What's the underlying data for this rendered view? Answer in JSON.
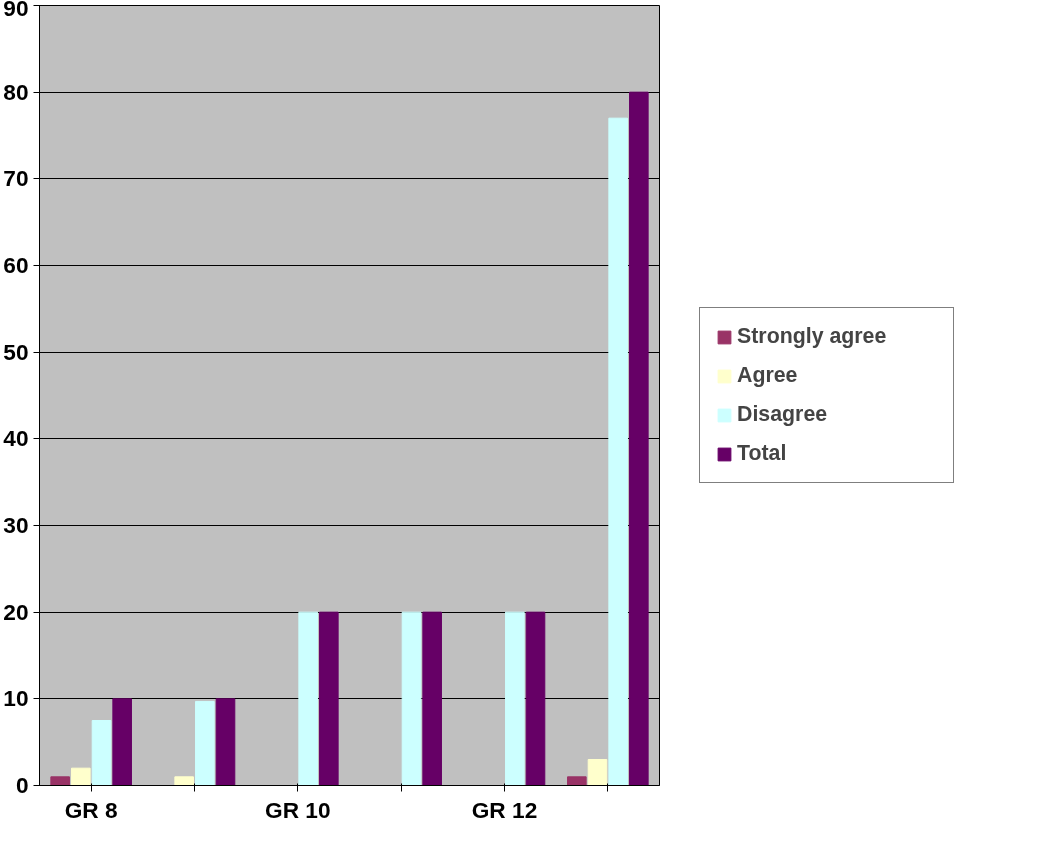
{
  "chart_data": {
    "type": "bar",
    "categories": [
      "GR 8",
      null,
      "GR 10",
      null,
      "GR 12",
      null
    ],
    "series": [
      {
        "name": "Strongly agree",
        "color": "#993366",
        "values": [
          1,
          0,
          0,
          0,
          0,
          1
        ]
      },
      {
        "name": "Agree",
        "color": "#ffffcc",
        "values": [
          2,
          1,
          0,
          0,
          0,
          3
        ]
      },
      {
        "name": "Disagree",
        "color": "#ccffff",
        "values": [
          7.5,
          9.7,
          20,
          20,
          20,
          77
        ]
      },
      {
        "name": "Total",
        "color": "#660066",
        "values": [
          10,
          10,
          20,
          20,
          20,
          80
        ]
      }
    ],
    "ylim": [
      0,
      90
    ],
    "yticks": [
      0,
      10,
      20,
      30,
      40,
      50,
      60,
      70,
      80,
      90
    ],
    "grid": "y",
    "legend": "right"
  }
}
